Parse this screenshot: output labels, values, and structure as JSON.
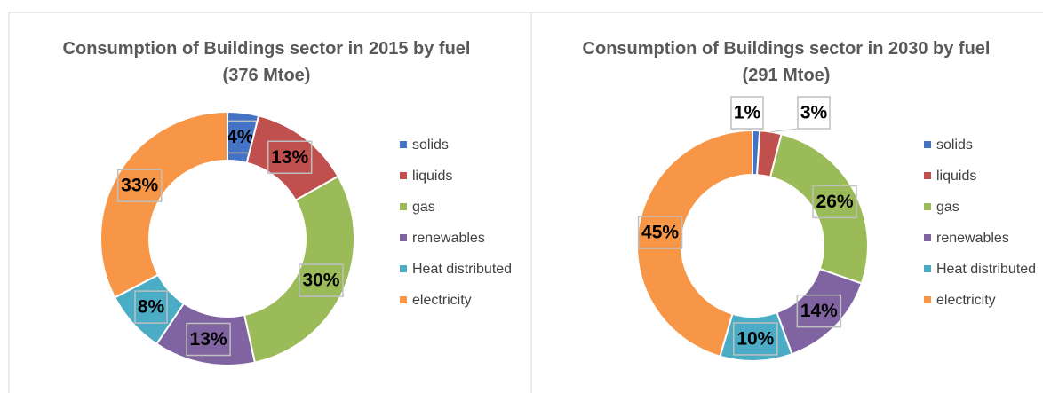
{
  "chart_data": [
    {
      "type": "donut",
      "title": "Consumption of Buildings sector in 2015 by fuel (376 Mtoe)",
      "categories": [
        "solids",
        "liquids",
        "gas",
        "renewables",
        "Heat distributed",
        "electricity"
      ],
      "values": [
        4,
        13,
        30,
        13,
        8,
        33
      ],
      "value_labels": [
        "4%",
        "13%",
        "30%",
        "13%",
        "8%",
        "33%"
      ],
      "colors": [
        "#4472c4",
        "#c0504d",
        "#9bbb59",
        "#8064a2",
        "#4bacc6",
        "#f79646"
      ],
      "legend": "right"
    },
    {
      "type": "donut",
      "title": "Consumption of Buildings sector in 2030 by fuel (291 Mtoe)",
      "categories": [
        "solids",
        "liquids",
        "gas",
        "renewables",
        "Heat distributed",
        "electricity"
      ],
      "values": [
        1,
        3,
        26,
        14,
        10,
        45
      ],
      "value_labels": [
        "1%",
        "3%",
        "26%",
        "14%",
        "10%",
        "45%"
      ],
      "colors": [
        "#4472c4",
        "#c0504d",
        "#9bbb59",
        "#8064a2",
        "#4bacc6",
        "#f79646"
      ],
      "legend": "right"
    }
  ]
}
